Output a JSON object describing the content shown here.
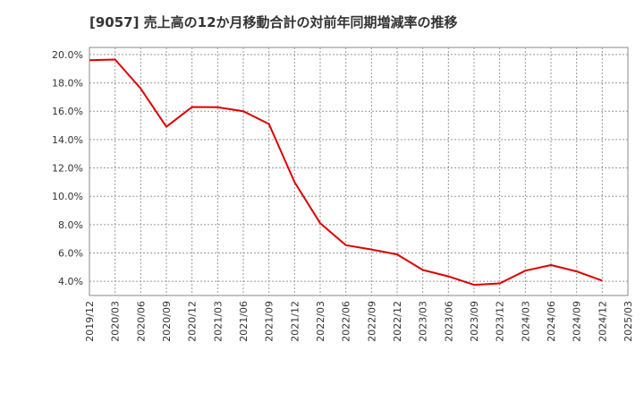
{
  "chart_data": {
    "type": "line",
    "title": "[9057]  売上高の12か月移動合計の対前年同期増減率の推移",
    "xlabel": "",
    "ylabel": "",
    "ylim": [
      3.0,
      20.5
    ],
    "grid": true,
    "y_ticks": [
      4.0,
      6.0,
      8.0,
      10.0,
      12.0,
      14.0,
      16.0,
      18.0,
      20.0
    ],
    "y_tick_labels": [
      "4.0%",
      "6.0%",
      "8.0%",
      "10.0%",
      "12.0%",
      "14.0%",
      "16.0%",
      "18.0%",
      "20.0%"
    ],
    "categories": [
      "2019/12",
      "2020/03",
      "2020/06",
      "2020/09",
      "2020/12",
      "2021/03",
      "2021/06",
      "2021/09",
      "2021/12",
      "2022/03",
      "2022/06",
      "2022/09",
      "2022/12",
      "2023/03",
      "2023/06",
      "2023/09",
      "2023/12",
      "2024/03",
      "2024/06",
      "2024/09",
      "2024/12",
      "2025/03"
    ],
    "series": [
      {
        "name": "対前年同期増減率",
        "color": "#dd0000",
        "values": [
          19.6,
          19.65,
          17.6,
          14.9,
          16.3,
          16.28,
          16.0,
          15.1,
          11.0,
          8.1,
          6.55,
          6.25,
          5.9,
          4.8,
          4.35,
          3.75,
          3.85,
          4.75,
          5.15,
          4.7,
          4.05,
          null
        ]
      }
    ]
  }
}
